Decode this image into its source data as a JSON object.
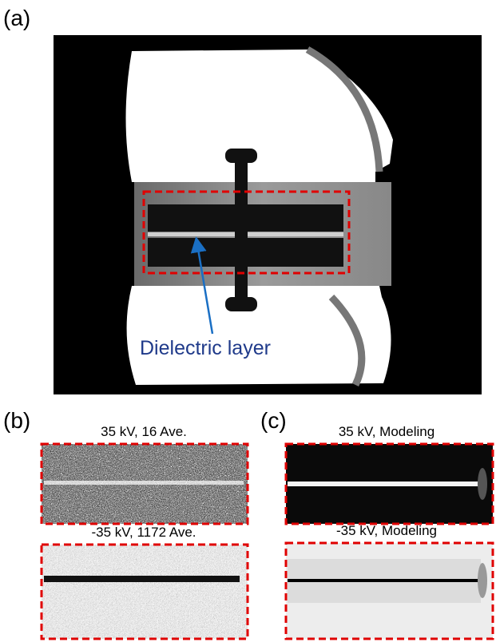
{
  "panels": [
    {
      "label": "(a)",
      "annotation": "Dielectric layer"
    },
    {
      "label": "(b)",
      "images": [
        {
          "title": "35 kV, 16 Ave."
        },
        {
          "title": "-35 kV, 1172 Ave."
        }
      ]
    },
    {
      "label": "(c)",
      "images": [
        {
          "title": "35 kV, Modeling"
        },
        {
          "title": "-35 kV, Modeling"
        }
      ]
    }
  ]
}
